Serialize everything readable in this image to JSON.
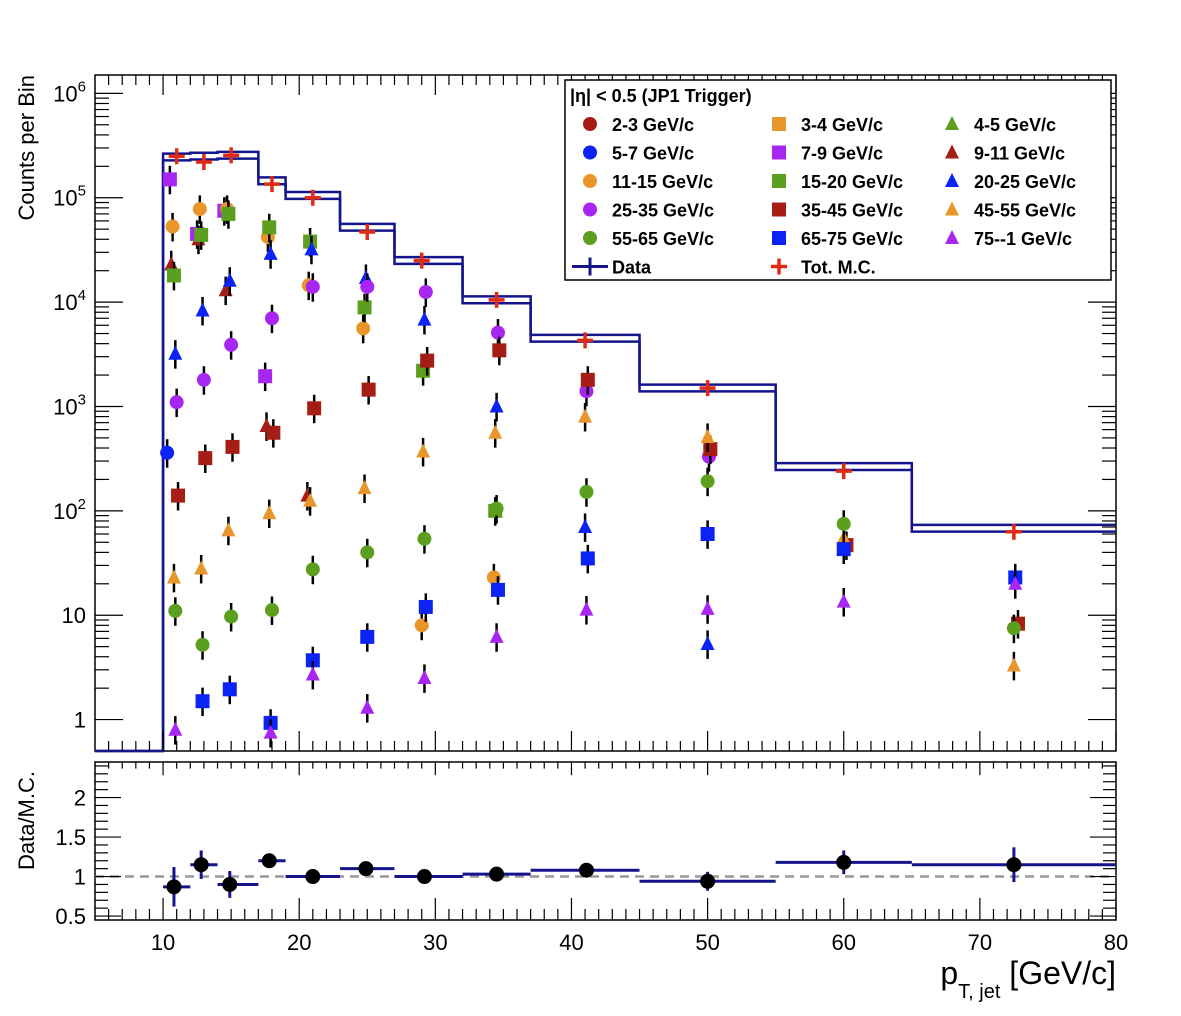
{
  "chart_data": [
    {
      "type": "scatter",
      "panel": "top",
      "ylabel": "Counts per Bin",
      "yscale": "log",
      "ylim": [
        0.5,
        1500000
      ],
      "xlim": [
        5,
        80
      ],
      "y_ticks": [
        {
          "value": 1,
          "label": "1",
          "sup": ""
        },
        {
          "value": 10,
          "label": "10",
          "sup": ""
        },
        {
          "value": 100,
          "label": "10",
          "sup": "2"
        },
        {
          "value": 1000,
          "label": "10",
          "sup": "3"
        },
        {
          "value": 10000,
          "label": "10",
          "sup": "4"
        },
        {
          "value": 100000,
          "label": "10",
          "sup": "5"
        },
        {
          "value": 1000000,
          "label": "10",
          "sup": "6"
        }
      ],
      "legend": {
        "title": "|η| < 0.5 (JP1 Trigger)",
        "placement": "top-right",
        "entries": [
          {
            "label": "2-3 GeV/c",
            "color": "#a51d14",
            "marker": "circle"
          },
          {
            "label": "3-4 GeV/c",
            "color": "#e8952a",
            "marker": "square"
          },
          {
            "label": "4-5 GeV/c",
            "color": "#5c9e1e",
            "marker": "triangle"
          },
          {
            "label": "5-7 GeV/c",
            "color": "#0b23f5",
            "marker": "circle"
          },
          {
            "label": "7-9 GeV/c",
            "color": "#a726f2",
            "marker": "square"
          },
          {
            "label": "9-11 GeV/c",
            "color": "#a51d14",
            "marker": "triangle"
          },
          {
            "label": "11-15 GeV/c",
            "color": "#e8952a",
            "marker": "circle"
          },
          {
            "label": "15-20 GeV/c",
            "color": "#5c9e1e",
            "marker": "square"
          },
          {
            "label": "20-25 GeV/c",
            "color": "#0b23f5",
            "marker": "triangle"
          },
          {
            "label": "25-35 GeV/c",
            "color": "#a726f2",
            "marker": "circle"
          },
          {
            "label": "35-45 GeV/c",
            "color": "#a51d14",
            "marker": "square"
          },
          {
            "label": "45-55 GeV/c",
            "color": "#e8952a",
            "marker": "triangle"
          },
          {
            "label": "55-65 GeV/c",
            "color": "#5c9e1e",
            "marker": "circle"
          },
          {
            "label": "65-75 GeV/c",
            "color": "#0b23f5",
            "marker": "square"
          },
          {
            "label": "75--1 GeV/c",
            "color": "#a726f2",
            "marker": "triangle"
          },
          {
            "label": "Data",
            "color": "#14148c",
            "marker": "line-cross"
          },
          {
            "label": "Tot. M.C.",
            "color": "#e02a14",
            "marker": "cross"
          }
        ]
      },
      "data_hist": {
        "name": "Data",
        "color": "#14148c",
        "bins": [
          {
            "x0": 5,
            "x1": 10,
            "y": 0.5
          },
          {
            "x0": 10,
            "x1": 12,
            "y": 245000
          },
          {
            "x0": 12,
            "x1": 14,
            "y": 250000
          },
          {
            "x0": 14,
            "x1": 17,
            "y": 255000
          },
          {
            "x0": 17,
            "x1": 19,
            "y": 145000
          },
          {
            "x0": 19,
            "x1": 23,
            "y": 105000
          },
          {
            "x0": 23,
            "x1": 27,
            "y": 52000
          },
          {
            "x0": 27,
            "x1": 32,
            "y": 25000
          },
          {
            "x0": 32,
            "x1": 37,
            "y": 10500
          },
          {
            "x0": 37,
            "x1": 45,
            "y": 4500
          },
          {
            "x0": 45,
            "x1": 55,
            "y": 1500
          },
          {
            "x0": 55,
            "x1": 65,
            "y": 265
          },
          {
            "x0": 65,
            "x1": 80,
            "y": 68
          }
        ]
      },
      "total_mc": {
        "name": "Tot. M.C.",
        "color": "#e02a14",
        "x": [
          11,
          13,
          15,
          18,
          21,
          25,
          29,
          34.5,
          41,
          50,
          60,
          72.5
        ],
        "y": [
          250000,
          220000,
          255000,
          135000,
          100000,
          47000,
          25000,
          10500,
          4300,
          1500,
          240,
          63
        ]
      },
      "series": [
        {
          "name": "2-3 GeV/c",
          "marker": "circle",
          "color": "#a51d14",
          "x": [],
          "y": []
        },
        {
          "name": "3-4 GeV/c",
          "marker": "square",
          "color": "#e8952a",
          "x": [],
          "y": []
        },
        {
          "name": "4-5 GeV/c",
          "marker": "triangle",
          "color": "#5c9e1e",
          "x": [],
          "y": []
        },
        {
          "name": "5-7 GeV/c",
          "marker": "circle",
          "color": "#0b23f5",
          "x": [
            10.3
          ],
          "y": [
            360
          ]
        },
        {
          "name": "7-9 GeV/c",
          "marker": "square",
          "color": "#a726f2",
          "x": [
            10.5,
            12.5,
            14.5,
            17.5
          ],
          "y": [
            150000,
            45000,
            75000,
            1950
          ]
        },
        {
          "name": "9-11 GeV/c",
          "marker": "triangle",
          "color": "#a51d14",
          "x": [
            10.6,
            12.6,
            14.6,
            17.6,
            20.6
          ],
          "y": [
            23000,
            40000,
            13000,
            650,
            140
          ]
        },
        {
          "name": "11-15 GeV/c",
          "marker": "circle",
          "color": "#e8952a",
          "x": [
            10.7,
            12.7,
            14.7,
            17.7,
            20.7,
            24.7,
            29.0,
            34.3
          ],
          "y": [
            53000,
            78000,
            78000,
            42000,
            14500,
            5600,
            8,
            23
          ]
        },
        {
          "name": "15-20 GeV/c",
          "marker": "square",
          "color": "#5c9e1e",
          "x": [
            10.8,
            12.8,
            14.8,
            17.8,
            20.8,
            24.8,
            29.1,
            34.4
          ],
          "y": [
            18000,
            44000,
            70000,
            52000,
            38000,
            8900,
            2200,
            100
          ]
        },
        {
          "name": "20-25 GeV/c",
          "marker": "triangle",
          "color": "#0b23f5",
          "x": [
            10.9,
            12.9,
            14.9,
            17.9,
            20.9,
            24.9,
            29.2,
            34.5,
            41.0,
            50.0
          ],
          "y": [
            3200,
            8300,
            16000,
            29000,
            32000,
            17000,
            6800,
            1000,
            70,
            5.3
          ]
        },
        {
          "name": "25-35 GeV/c",
          "marker": "circle",
          "color": "#a726f2",
          "x": [
            11.0,
            13.0,
            15.0,
            18.0,
            21.0,
            25.0,
            29.3,
            34.6,
            41.1,
            50.1
          ],
          "y": [
            1100,
            1800,
            3900,
            7000,
            14000,
            14000,
            12500,
            5100,
            1400,
            330
          ]
        },
        {
          "name": "35-45 GeV/c",
          "marker": "square",
          "color": "#a51d14",
          "x": [
            11.1,
            13.1,
            15.1,
            18.1,
            21.1,
            25.1,
            29.4,
            34.7,
            41.2,
            50.2,
            60.2,
            72.8
          ],
          "y": [
            140,
            320,
            410,
            560,
            960,
            1450,
            2750,
            3450,
            1800,
            390,
            47,
            8.3
          ]
        },
        {
          "name": "45-55 GeV/c",
          "marker": "triangle",
          "color": "#e8952a",
          "x": [
            10.8,
            12.8,
            14.8,
            17.8,
            20.8,
            24.8,
            29.1,
            34.4,
            41.0,
            50.0,
            60.0,
            72.5
          ],
          "y": [
            23,
            28,
            65,
            95,
            125,
            165,
            370,
            560,
            800,
            510,
            55,
            3.3
          ]
        },
        {
          "name": "55-65 GeV/c",
          "marker": "circle",
          "color": "#5c9e1e",
          "x": [
            10.9,
            12.9,
            15.0,
            18.0,
            21.0,
            25.0,
            29.2,
            34.5,
            41.1,
            50.0,
            60.0,
            72.5
          ],
          "y": [
            11,
            5.2,
            9.7,
            11.2,
            27.5,
            40,
            54,
            105,
            152,
            192,
            75,
            7.5
          ]
        },
        {
          "name": "65-75 GeV/c",
          "marker": "square",
          "color": "#0b23f5",
          "x": [
            12.9,
            14.9,
            17.9,
            21.0,
            25.0,
            29.3,
            34.6,
            41.2,
            50.0,
            60.0,
            72.6
          ],
          "y": [
            1.5,
            1.95,
            0.93,
            3.7,
            6.2,
            12,
            17.5,
            35,
            60,
            43,
            23
          ]
        },
        {
          "name": "75--1 GeV/c",
          "marker": "triangle",
          "color": "#a726f2",
          "x": [
            10.9,
            17.9,
            21.0,
            25.0,
            29.2,
            34.5,
            41.1,
            50.0,
            60.0,
            72.6
          ],
          "y": [
            0.8,
            0.75,
            2.7,
            1.3,
            2.5,
            6.2,
            11.3,
            11.5,
            13.5,
            20
          ]
        }
      ]
    },
    {
      "type": "scatter",
      "panel": "bottom",
      "ylabel": "Data/M.C.",
      "xlabel": "p",
      "xlabel_sub": "T, jet",
      "xlabel_unit": " [GeV/c]",
      "xlim": [
        5,
        80
      ],
      "ylim": [
        0.45,
        2.45
      ],
      "x_ticks": [
        10,
        20,
        30,
        40,
        50,
        60,
        70,
        80
      ],
      "y_ticks": [
        {
          "value": 0.5,
          "label": "0.5"
        },
        {
          "value": 1,
          "label": "1"
        },
        {
          "value": 1.5,
          "label": "1.5"
        },
        {
          "value": 2,
          "label": "2"
        }
      ],
      "reference_line": 1,
      "series": [
        {
          "name": "Data/M.C.",
          "color": "#14148c",
          "points": [
            {
              "x": 10.8,
              "x0": 10,
              "x1": 12,
              "y": 0.87,
              "err": 0.25
            },
            {
              "x": 12.8,
              "x0": 12,
              "x1": 14,
              "y": 1.15,
              "err": 0.18
            },
            {
              "x": 14.9,
              "x0": 14,
              "x1": 17,
              "y": 0.9,
              "err": 0.17
            },
            {
              "x": 17.8,
              "x0": 17,
              "x1": 19,
              "y": 1.2,
              "err": 0.02
            },
            {
              "x": 21.0,
              "x0": 19,
              "x1": 23,
              "y": 1.0,
              "err": 0.02
            },
            {
              "x": 24.9,
              "x0": 23,
              "x1": 27,
              "y": 1.1,
              "err": 0.02
            },
            {
              "x": 29.2,
              "x0": 27,
              "x1": 32,
              "y": 1.0,
              "err": 0.02
            },
            {
              "x": 34.5,
              "x0": 32,
              "x1": 37,
              "y": 1.03,
              "err": 0.02
            },
            {
              "x": 41.1,
              "x0": 37,
              "x1": 45,
              "y": 1.08,
              "err": 0.06
            },
            {
              "x": 50.0,
              "x0": 45,
              "x1": 55,
              "y": 0.94,
              "err": 0.12
            },
            {
              "x": 60.0,
              "x0": 55,
              "x1": 65,
              "y": 1.18,
              "err": 0.15
            },
            {
              "x": 72.5,
              "x0": 65,
              "x1": 80,
              "y": 1.15,
              "err": 0.22
            }
          ]
        }
      ]
    }
  ]
}
